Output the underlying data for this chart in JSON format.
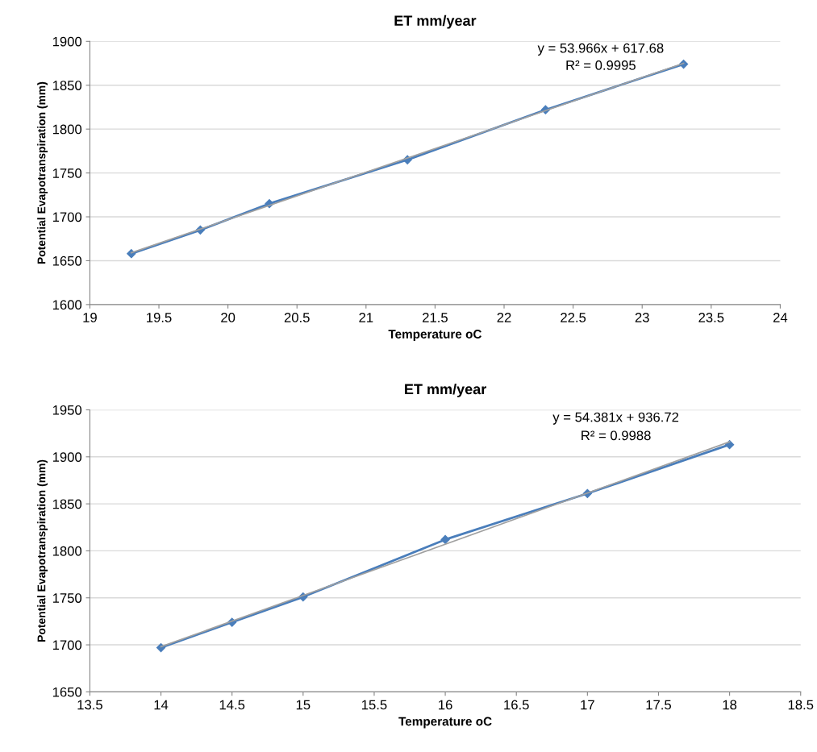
{
  "chart_data": [
    {
      "type": "line",
      "title": "ET mm/year",
      "xlabel": "Temperature oC",
      "ylabel": "Potential Evapotranspiration (mm)",
      "annotations": [
        "y = 53.966x + 617.68",
        "R² = 0.9995"
      ],
      "xlim": [
        19,
        24
      ],
      "xticks": [
        19,
        19.5,
        20,
        20.5,
        21,
        21.5,
        22,
        22.5,
        23,
        23.5,
        24
      ],
      "ylim": [
        1600,
        1900
      ],
      "yticks": [
        1600,
        1650,
        1700,
        1750,
        1800,
        1850,
        1900
      ],
      "grid": "y",
      "legend": false,
      "series": [
        {
          "color": "#4a7ebb",
          "x": [
            19.3,
            19.8,
            20.3,
            21.3,
            22.3,
            23.3
          ],
          "values": [
            1658,
            1685,
            1715,
            1765,
            1822,
            1874
          ],
          "marker": "diamond"
        },
        {
          "type": "line",
          "color": "#a0a0a0",
          "x": [
            19.3,
            23.3
          ],
          "values": [
            1659,
            1875
          ],
          "marker": "none"
        }
      ]
    },
    {
      "type": "line",
      "title": "ET mm/year",
      "xlabel": "Temperature oC",
      "ylabel": "Potential Evapotranspiration (mm)",
      "annotations": [
        "y = 54.381x + 936.72",
        "R² = 0.9988"
      ],
      "xlim": [
        13.5,
        18.5
      ],
      "xticks": [
        13.5,
        14,
        14.5,
        15,
        15.5,
        16,
        16.5,
        17,
        17.5,
        18,
        18.5
      ],
      "ylim": [
        1650,
        1950
      ],
      "yticks": [
        1650,
        1700,
        1750,
        1800,
        1850,
        1900,
        1950
      ],
      "grid": "y",
      "legend": false,
      "series": [
        {
          "color": "#4a7ebb",
          "x": [
            14,
            14.5,
            15,
            16,
            17,
            18
          ],
          "values": [
            1697,
            1724,
            1751,
            1812,
            1861,
            1913
          ],
          "marker": "diamond"
        },
        {
          "type": "line",
          "color": "#a0a0a0",
          "x": [
            14,
            18
          ],
          "values": [
            1698,
            1916
          ],
          "marker": "none"
        }
      ]
    }
  ]
}
